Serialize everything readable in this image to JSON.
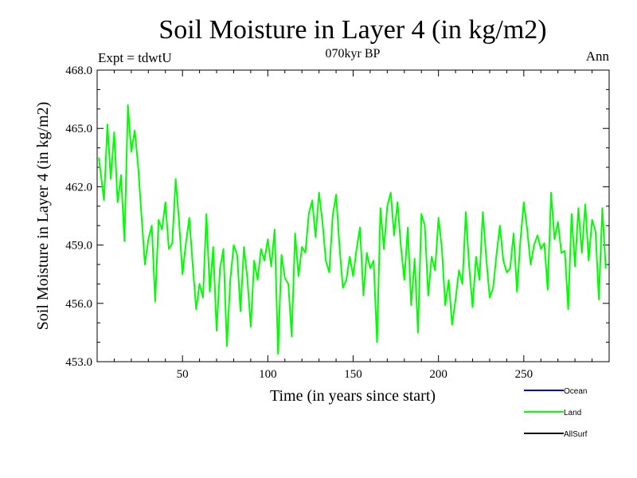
{
  "chart_data": {
    "type": "line",
    "title": "Soil Moisture in Layer 4 (in kg/m2)",
    "subtitle": "070kyr BP",
    "experiment_label": "Expt = tdwtU",
    "period_label": "Ann",
    "xlabel": "Time (in years since start)",
    "ylabel": "Soil Moisture in Layer 4 (in kg/m2)",
    "xlim": [
      0,
      300
    ],
    "ylim": [
      453.0,
      468.0
    ],
    "x_ticks": [
      50,
      100,
      150,
      200,
      250
    ],
    "x_tick_labels": [
      "50",
      "100",
      "150",
      "200",
      "250"
    ],
    "y_ticks": [
      453,
      456,
      459,
      462,
      465,
      468
    ],
    "y_tick_labels": [
      "453.0",
      "456.0",
      "459.0",
      "462.0",
      "465.0",
      "468.0"
    ],
    "grid": false,
    "legend_position": "bottom-right",
    "legend": [
      {
        "name": "Ocean",
        "color": "#0000cc"
      },
      {
        "name": "Land",
        "color": "#00ff00"
      },
      {
        "name": "AllSurf",
        "color": "#000000"
      }
    ],
    "series": [
      {
        "name": "Land",
        "color": "#00ff00",
        "x": [
          1,
          4,
          6,
          8,
          10,
          12,
          14,
          16,
          18,
          20,
          22,
          24,
          26,
          28,
          30,
          32,
          34,
          36,
          38,
          40,
          42,
          44,
          46,
          48,
          50,
          52,
          54,
          56,
          58,
          60,
          62,
          64,
          66,
          68,
          70,
          72,
          74,
          76,
          78,
          80,
          82,
          84,
          86,
          88,
          90,
          92,
          94,
          96,
          98,
          100,
          102,
          104,
          106,
          108,
          110,
          112,
          114,
          116,
          118,
          120,
          122,
          124,
          126,
          128,
          130,
          132,
          134,
          136,
          138,
          140,
          142,
          144,
          146,
          148,
          150,
          152,
          154,
          156,
          158,
          160,
          162,
          164,
          166,
          168,
          170,
          172,
          174,
          176,
          178,
          180,
          182,
          184,
          186,
          188,
          190,
          192,
          194,
          196,
          198,
          200,
          202,
          204,
          206,
          208,
          210,
          212,
          214,
          216,
          218,
          220,
          222,
          224,
          226,
          228,
          230,
          232,
          234,
          236,
          238,
          240,
          242,
          244,
          246,
          248,
          250,
          252,
          254,
          256,
          258,
          260,
          262,
          264,
          266,
          268,
          270,
          272,
          274,
          276,
          278,
          280,
          282,
          284,
          286,
          288,
          290,
          292,
          294,
          296,
          298
        ],
        "values": [
          463.5,
          461.3,
          465.2,
          462.4,
          464.8,
          461.2,
          462.6,
          459.2,
          466.2,
          463.8,
          464.9,
          463.1,
          460.5,
          458.0,
          459.3,
          460.0,
          456.1,
          460.3,
          459.8,
          461.2,
          458.8,
          459.1,
          462.4,
          460.2,
          457.5,
          459.1,
          460.4,
          458.0,
          455.7,
          457.0,
          456.3,
          460.6,
          456.6,
          458.9,
          454.6,
          457.8,
          458.8,
          453.8,
          457.2,
          459.0,
          458.5,
          455.6,
          458.9,
          457.3,
          454.8,
          458.2,
          457.2,
          458.8,
          458.2,
          459.3,
          457.9,
          459.8,
          453.4,
          458.5,
          457.3,
          457.0,
          454.3,
          459.6,
          457.4,
          458.9,
          458.6,
          460.6,
          461.3,
          459.4,
          461.7,
          460.2,
          458.2,
          457.6,
          460.5,
          461.6,
          458.9,
          456.8,
          457.2,
          458.4,
          457.4,
          458.8,
          459.9,
          456.4,
          458.6,
          457.8,
          458.2,
          454.0,
          460.9,
          458.8,
          461.0,
          461.7,
          459.5,
          461.2,
          458.9,
          457.2,
          459.9,
          455.9,
          458.3,
          454.5,
          460.6,
          460.0,
          456.4,
          458.4,
          457.7,
          460.4,
          458.8,
          455.9,
          457.2,
          454.9,
          456.2,
          457.7,
          457.0,
          460.7,
          457.9,
          455.8,
          458.4,
          457.2,
          460.7,
          458.3,
          456.3,
          456.8,
          458.5,
          460.0,
          458.2,
          457.6,
          457.8,
          459.6,
          456.6,
          459.2,
          461.2,
          459.8,
          458.0,
          459.0,
          459.5,
          458.8,
          459.1,
          456.7,
          461.7,
          459.3,
          460.2,
          458.6,
          458.7,
          455.7,
          460.6,
          457.9,
          460.9,
          458.6,
          461.1,
          458.2,
          460.3,
          459.7,
          456.2,
          460.9,
          457.8
        ]
      }
    ]
  }
}
